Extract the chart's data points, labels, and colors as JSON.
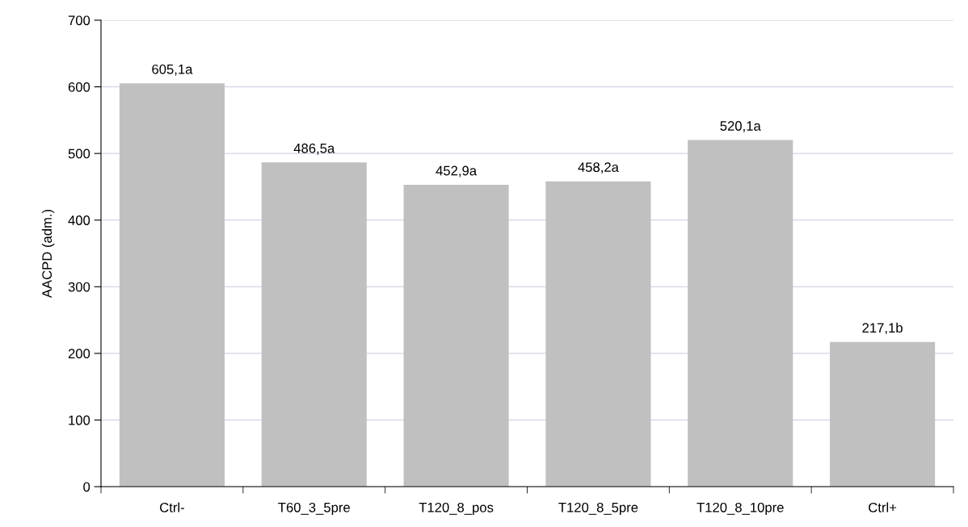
{
  "chart_data": {
    "type": "bar",
    "ylabel": "AACPD (adm.)",
    "categories": [
      "Ctrl-",
      "T60_3_5pre",
      "T120_8_pos",
      "T120_8_5pre",
      "T120_8_10pre",
      "Ctrl+"
    ],
    "values": [
      605.1,
      486.5,
      452.9,
      458.2,
      520.1,
      217.1
    ],
    "value_labels": [
      "605,1a",
      "486,5a",
      "452,9a",
      "458,2a",
      "520,1a",
      "217,1b"
    ],
    "color": "#c0c0c0",
    "ylim": [
      0,
      700
    ],
    "yticks": [
      0,
      100,
      200,
      300,
      400,
      500,
      600,
      700
    ],
    "grid": "y",
    "legend": false
  }
}
